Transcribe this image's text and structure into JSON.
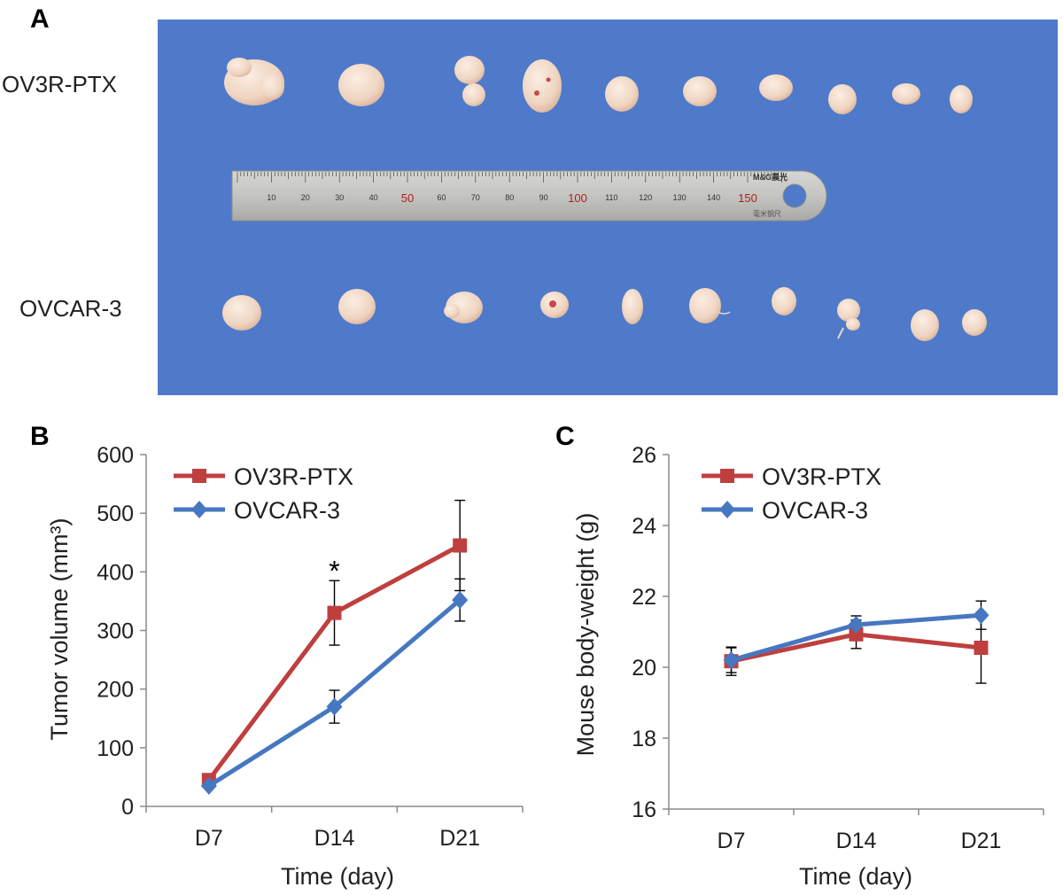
{
  "panel_a": {
    "letter": "A",
    "row_labels": [
      "OV3R-PTX",
      "OVCAR-3"
    ],
    "ruler": {
      "ticks": [
        "10",
        "20",
        "30",
        "40",
        "50",
        "60",
        "70",
        "80",
        "90",
        "100",
        "110",
        "120",
        "130",
        "140",
        "150"
      ],
      "major": [
        "50",
        "100",
        "150"
      ],
      "brand": "M&G晨光",
      "subtext": "毫米钢尺"
    },
    "colors": {
      "background": "#4f7ac9",
      "tumor": "#f0d8c6",
      "ruler": "#c9c9c6"
    }
  },
  "chart_data": [
    {
      "type": "line",
      "letter": "B",
      "categories": [
        "D7",
        "D14",
        "D21"
      ],
      "xlabel": "Time (day)",
      "ylabel": "Tumor volume (mm³)",
      "ylim": [
        0,
        600
      ],
      "yticks": [
        "0",
        "100",
        "200",
        "300",
        "400",
        "500",
        "600"
      ],
      "grid": false,
      "legend_position": "top-left",
      "series": [
        {
          "name": "OV3R-PTX",
          "marker": "square",
          "color": "#bf3f3f",
          "values": [
            45,
            330,
            445
          ],
          "errors": [
            0,
            55,
            77
          ]
        },
        {
          "name": "OVCAR-3",
          "marker": "diamond",
          "color": "#4677c0",
          "values": [
            35,
            170,
            352
          ],
          "errors": [
            0,
            28,
            36
          ]
        }
      ],
      "annotations": [
        {
          "text": "*",
          "category": "D14",
          "y": 415
        }
      ]
    },
    {
      "type": "line",
      "letter": "C",
      "categories": [
        "D7",
        "D14",
        "D21"
      ],
      "xlabel": "Time (day)",
      "ylabel": "Mouse body-weight (g)",
      "ylim": [
        16,
        26
      ],
      "yticks": [
        "16",
        "18",
        "20",
        "22",
        "24",
        "26"
      ],
      "grid": false,
      "legend_position": "top-left",
      "series": [
        {
          "name": "OV3R-PTX",
          "marker": "square",
          "color": "#bf3f3f",
          "values": [
            20.17,
            20.93,
            20.55
          ],
          "errors": [
            0.4,
            0.4,
            1.0
          ]
        },
        {
          "name": "OVCAR-3",
          "marker": "diamond",
          "color": "#4677c0",
          "values": [
            20.2,
            21.2,
            21.47
          ],
          "errors": [
            0.35,
            0.25,
            0.4
          ]
        }
      ],
      "annotations": []
    }
  ]
}
